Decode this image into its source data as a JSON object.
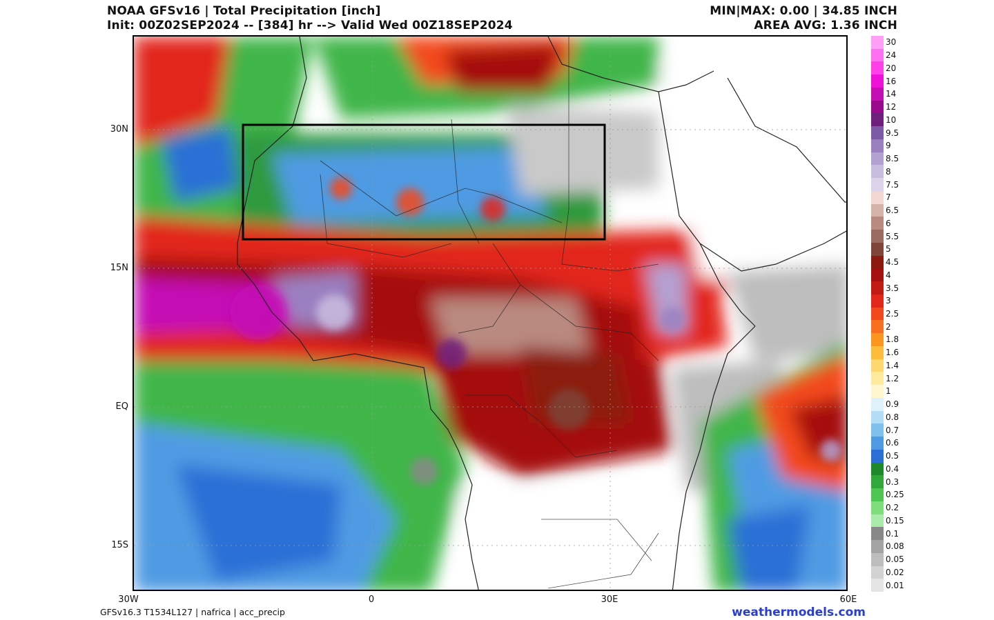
{
  "header": {
    "title": "NOAA GFSv16 | Total Precipitation [inch]",
    "subtitle": "Init: 00Z02SEP2024 -- [384] hr --> Valid Wed 00Z18SEP2024",
    "minmax": "MIN|MAX: 0.00 | 34.85 INCH",
    "area_avg": "AREA AVG: 1.36 INCH"
  },
  "map": {
    "lat_labels": [
      "30N",
      "15N",
      "EQ",
      "15S"
    ],
    "lon_labels": [
      "30W",
      "0",
      "30E",
      "60E"
    ],
    "highlight_box": true
  },
  "legend": {
    "labels": [
      "30",
      "24",
      "20",
      "16",
      "14",
      "12",
      "10",
      "9.5",
      "9",
      "8.5",
      "8",
      "7.5",
      "7",
      "6.5",
      "6",
      "5.5",
      "5",
      "4.5",
      "4",
      "3.5",
      "3",
      "2.5",
      "2",
      "1.8",
      "1.6",
      "1.4",
      "1.2",
      "1",
      "0.9",
      "0.8",
      "0.7",
      "0.6",
      "0.5",
      "0.4",
      "0.3",
      "0.25",
      "0.2",
      "0.15",
      "0.1",
      "0.08",
      "0.05",
      "0.02",
      "0.01"
    ],
    "colors": [
      "#ff9ef7",
      "#ff6ff2",
      "#ff3fe8",
      "#f011d8",
      "#c40fb5",
      "#9a0a8e",
      "#6f1f7c",
      "#7d5aa6",
      "#9a80c0",
      "#b3a1d1",
      "#c9bddf",
      "#dcd2ea",
      "#f2d7d0",
      "#d6b2a8",
      "#b98a80",
      "#9c6b60",
      "#7e4538",
      "#8c1a10",
      "#a50f0f",
      "#c01a12",
      "#e2261a",
      "#f3481c",
      "#f8701f",
      "#fb951f",
      "#fdbb3c",
      "#fdd770",
      "#fee99d",
      "#fff6cf",
      "#dff1fb",
      "#b3dcf6",
      "#80c0ef",
      "#4f9be3",
      "#2a6fd6",
      "#1b8a2a",
      "#31a83a",
      "#4ec652",
      "#7fde7b",
      "#aaebaa",
      "#888888",
      "#a4a4a4",
      "#bdbdbd",
      "#d2d2d2",
      "#e4e4e4"
    ]
  },
  "footer": {
    "model_info": "GFSv16.3 T1534L127 | nafrica | acc_precip",
    "brand": "weathermodels.com"
  }
}
